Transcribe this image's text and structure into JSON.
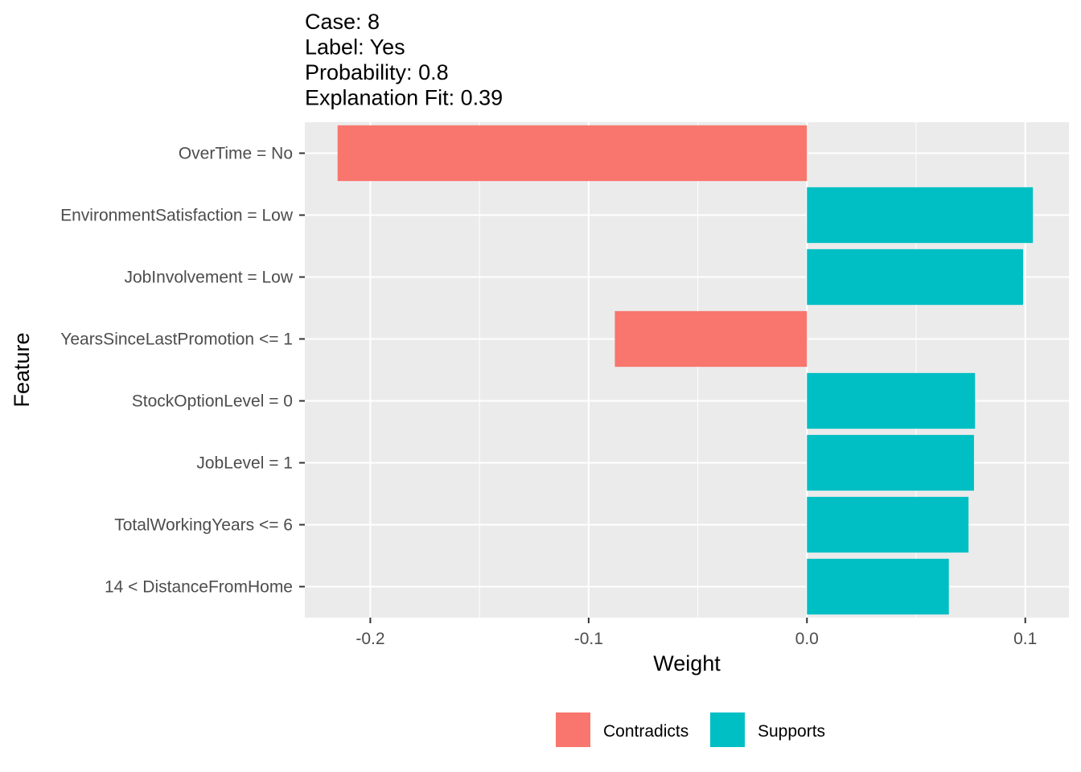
{
  "chart_data": {
    "type": "bar",
    "orientation": "horizontal",
    "title_lines": [
      "Case: 8",
      "Label: Yes",
      "Probability: 0.8",
      "Explanation Fit: 0.39"
    ],
    "xlabel": "Weight",
    "ylabel": "Feature",
    "xlim": [
      -0.23,
      0.12
    ],
    "x_ticks": [
      {
        "value": -0.2,
        "label": "-0.2"
      },
      {
        "value": -0.1,
        "label": "-0.1"
      },
      {
        "value": 0.0,
        "label": "0.0"
      },
      {
        "value": 0.1,
        "label": "0.1"
      }
    ],
    "grid": true,
    "legend_position": "bottom",
    "series": [
      {
        "name": "Contradicts",
        "color": "#F8766D"
      },
      {
        "name": "Supports",
        "color": "#00BFC4"
      }
    ],
    "categories": [
      "OverTime = No",
      "EnvironmentSatisfaction = Low",
      "JobInvolvement = Low",
      "YearsSinceLastPromotion <= 1",
      "StockOptionLevel = 0",
      "JobLevel = 1",
      "TotalWorkingYears <= 6",
      "14 < DistanceFromHome"
    ],
    "values": [
      -0.215,
      0.1035,
      0.099,
      -0.088,
      0.077,
      0.0765,
      0.074,
      0.065
    ],
    "groups": [
      "Contradicts",
      "Supports",
      "Supports",
      "Contradicts",
      "Supports",
      "Supports",
      "Supports",
      "Supports"
    ]
  }
}
